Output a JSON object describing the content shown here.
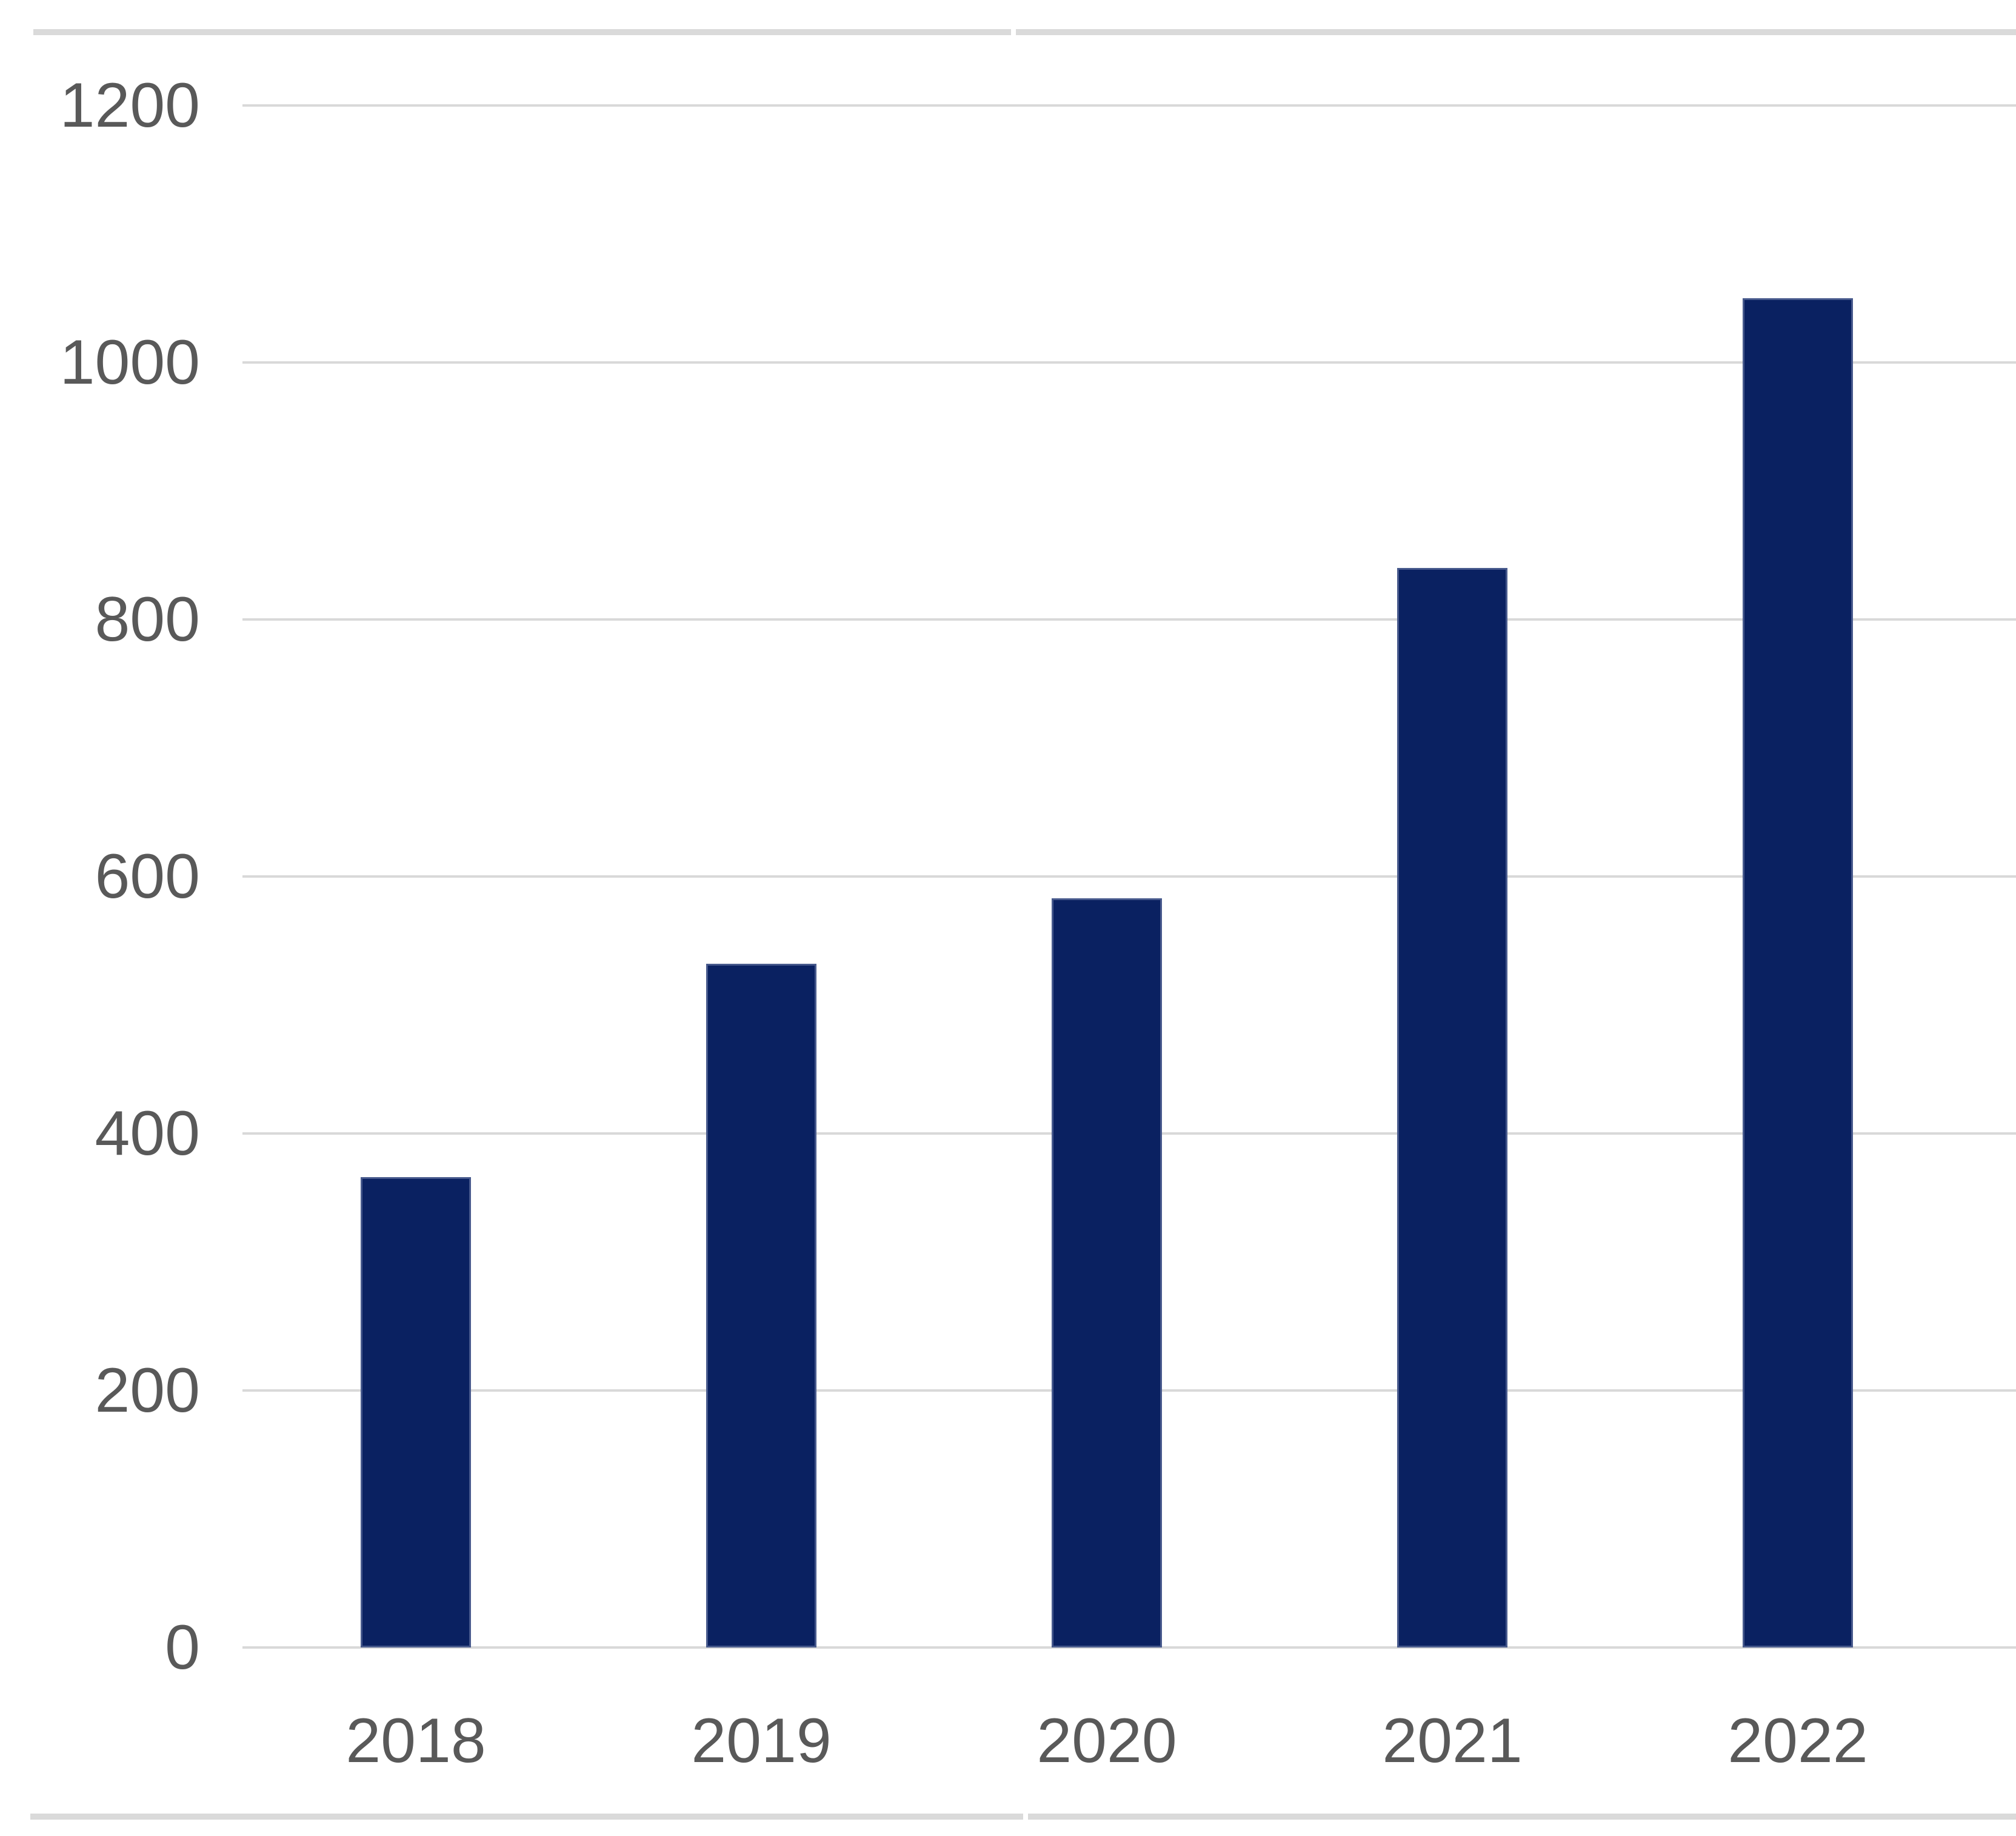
{
  "chart_data": {
    "type": "bar",
    "title": "",
    "xlabel": "",
    "ylabel": "",
    "categories": [
      "2018",
      "2019",
      "2020",
      "2021",
      "2022"
    ],
    "values": [
      366,
      532,
      583,
      840,
      1050
    ],
    "yticks": [
      0,
      200,
      400,
      600,
      800,
      1000,
      1200
    ],
    "ylim": [
      0,
      1200
    ],
    "grid": true,
    "legend": "none",
    "bar_color": "#0a2161",
    "bar_edge_color": "#47598c",
    "gridline_color": "#d9d9d9",
    "axis_label_color": "#595959",
    "background_color": "#ffffff",
    "frame_line_color": "#dadada"
  }
}
